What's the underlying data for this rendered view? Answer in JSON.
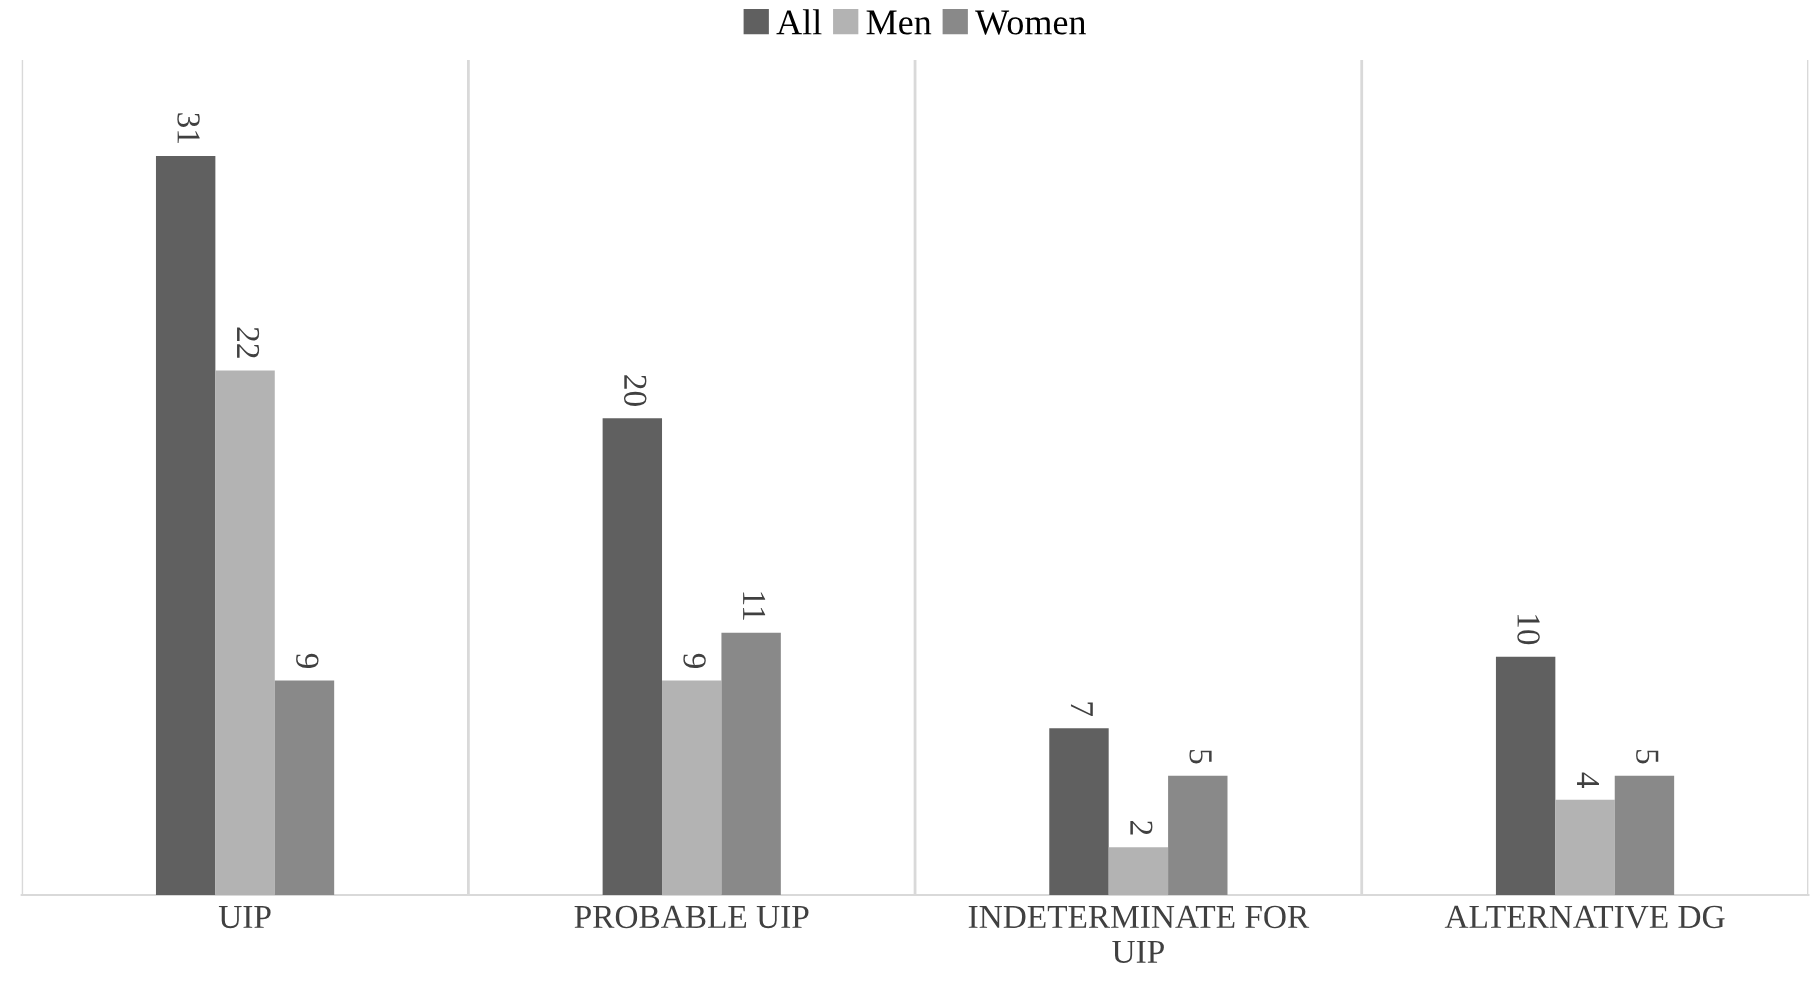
{
  "chart_data": {
    "type": "bar",
    "categories": [
      "UIP",
      "PROBABLE UIP",
      "INDETERMINATE FOR\nUIP",
      "ALTERNATIVE DG"
    ],
    "series": [
      {
        "name": "All",
        "color": "#606060",
        "values": [
          31,
          20,
          7,
          10
        ]
      },
      {
        "name": "Men",
        "color": "#b3b3b3",
        "values": [
          22,
          9,
          2,
          4
        ]
      },
      {
        "name": "Women",
        "color": "#898989",
        "values": [
          9,
          11,
          5,
          5
        ]
      }
    ],
    "data_labels": true,
    "grid": "x",
    "legend": "top"
  }
}
